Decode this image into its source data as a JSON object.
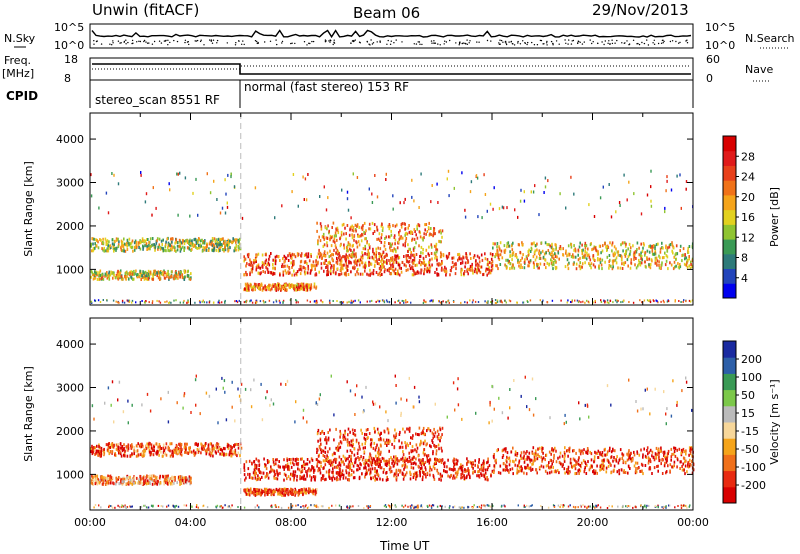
{
  "header": {
    "station": "Unwin (fitACF)",
    "beam": "Beam 06",
    "date": "29/Nov/2013"
  },
  "top_panel": {
    "left_label": "N.Sky",
    "right_label": "N.Search",
    "left_ticks": [
      "10^5",
      "10^0"
    ],
    "right_ticks": [
      "10^5",
      "10^0"
    ],
    "freq_label_1": "Freq.",
    "freq_label_2": "[MHz]",
    "freq_ticks": [
      "18",
      "8"
    ],
    "nave_label": "Nave",
    "nave_ticks": [
      "60",
      "0"
    ],
    "cpid_label": "CPID",
    "cpid_1": "stereo_scan 8551 RF",
    "cpid_2": "normal (fast stereo) 153 RF"
  },
  "chart_data": [
    {
      "type": "heatmap",
      "quantity": "power",
      "ylabel": "Slant Range [km]",
      "yticks": [
        "1000",
        "2000",
        "3000",
        "4000"
      ],
      "ylim": [
        180,
        4600
      ],
      "xticks": [
        "00:00",
        "04:00",
        "08:00",
        "12:00",
        "16:00",
        "20:00",
        "00:00"
      ],
      "xlim_hours": [
        0,
        24
      ],
      "colorbar_label": "Power [dB]",
      "colorbar_ticks": [
        "28",
        "24",
        "20",
        "16",
        "12",
        "8",
        "4"
      ],
      "colorbar_range": [
        0,
        32
      ],
      "colorbar_colors": [
        "#0000ee",
        "#2244bb",
        "#2d7a7a",
        "#3a9a55",
        "#8fc431",
        "#e2d11f",
        "#f5a41a",
        "#f07218",
        "#e8401a",
        "#e01a1a",
        "#d80000"
      ],
      "bands": [
        {
          "h": [
            0,
            6
          ],
          "km": [
            1450,
            1750
          ],
          "level": 0.45
        },
        {
          "h": [
            0,
            4
          ],
          "km": [
            800,
            1000
          ],
          "level": 0.5
        },
        {
          "h": [
            6.1,
            16
          ],
          "km": [
            900,
            1400
          ],
          "level": 0.75
        },
        {
          "h": [
            9,
            14
          ],
          "km": [
            1300,
            2100
          ],
          "level": 0.65
        },
        {
          "h": [
            16,
            24
          ],
          "km": [
            1050,
            1650
          ],
          "level": 0.55
        },
        {
          "h": [
            6.1,
            9
          ],
          "km": [
            550,
            700
          ],
          "level": 0.7
        }
      ]
    },
    {
      "type": "heatmap",
      "quantity": "velocity",
      "ylabel": "Slant Range [km]",
      "yticks": [
        "1000",
        "2000",
        "3000",
        "4000"
      ],
      "ylim": [
        180,
        4600
      ],
      "xticks": [
        "00:00",
        "04:00",
        "08:00",
        "12:00",
        "16:00",
        "20:00",
        "00:00"
      ],
      "xlabel": "Time UT",
      "xlim_hours": [
        0,
        24
      ],
      "colorbar_label": "Velocity [m s⁻¹]",
      "colorbar_ticks": [
        "200",
        "100",
        "50",
        "15",
        "-15",
        "-50",
        "-100",
        "-200"
      ],
      "colorbar_colors": [
        "#d80000",
        "#e82a10",
        "#f0701a",
        "#f5a41a",
        "#f7d79a",
        "#bbbbbb",
        "#7cc84a",
        "#3a9a55",
        "#2d5fa8",
        "#1a2aa0"
      ],
      "bands": [
        {
          "h": [
            0,
            6
          ],
          "km": [
            1450,
            1750
          ],
          "level": 0.2
        },
        {
          "h": [
            0,
            4
          ],
          "km": [
            800,
            1000
          ],
          "level": 0.3
        },
        {
          "h": [
            6.1,
            16
          ],
          "km": [
            900,
            1400
          ],
          "level": 0.1
        },
        {
          "h": [
            9,
            14
          ],
          "km": [
            1300,
            2100
          ],
          "level": 0.15
        },
        {
          "h": [
            16,
            24
          ],
          "km": [
            1050,
            1650
          ],
          "level": 0.15
        },
        {
          "h": [
            6.1,
            9
          ],
          "km": [
            550,
            700
          ],
          "level": 0.2
        }
      ]
    }
  ],
  "colors": {
    "axis": "#000000",
    "divider": "#bbbbbb"
  }
}
